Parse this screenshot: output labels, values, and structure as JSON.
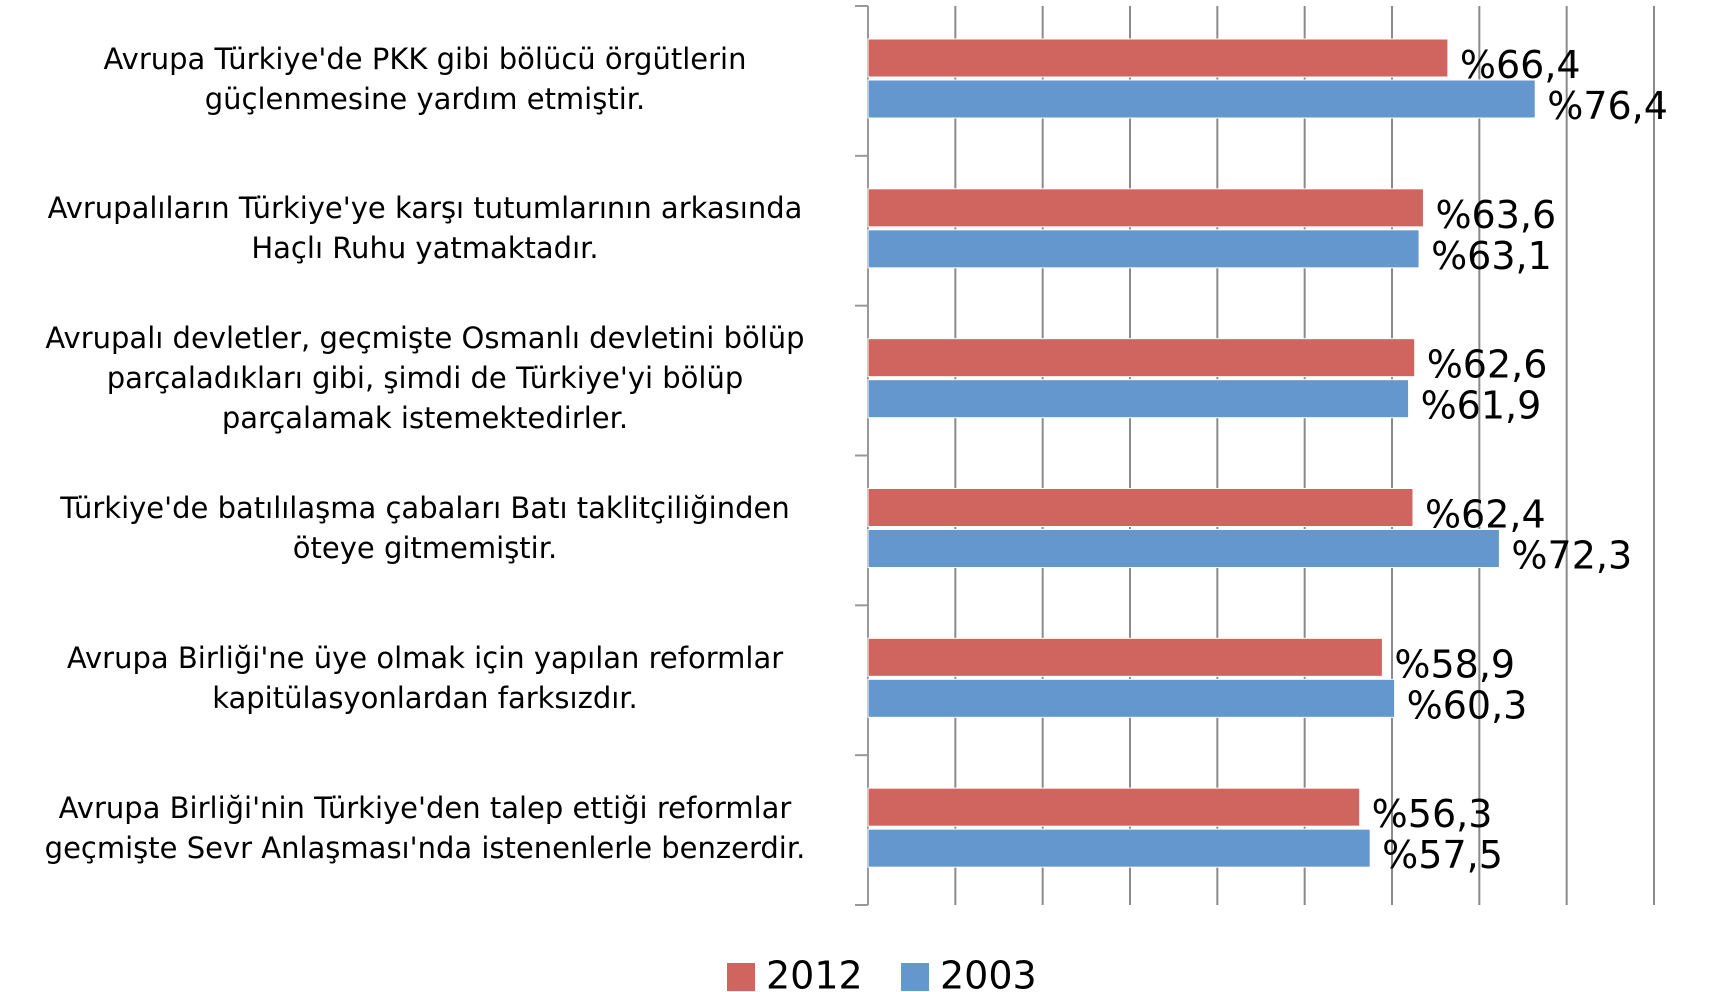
{
  "chart_data": {
    "type": "bar",
    "orientation": "horizontal",
    "categories": [
      "Avrupa Türkiye'de PKK gibi bölücü örgütlerin\ngüçlenmesine yardım etmiştir.",
      "Avrupalıların Türkiye'ye karşı tutumlarının arkasında\nHaçlı Ruhu yatmaktadır.",
      "Avrupalı devletler, geçmişte Osmanlı devletini bölüp\nparçaladıkları gibi, şimdi de Türkiye'yi bölüp\nparçalamak istemektedirler.",
      "Türkiye'de batılılaşma çabaları Batı taklitçiliğinden\nöteye gitmemiştir.",
      "Avrupa Birliği'ne üye olmak için yapılan reformlar\nkapitülasyonlardan farksızdır.",
      "Avrupa Birliği'nin Türkiye'den talep ettiği reformlar\ngeçmişte Sevr Anlaşması'nda istenenlerle benzerdir."
    ],
    "series": [
      {
        "name": "2012",
        "color": "#d0655f",
        "values": [
          66.4,
          63.6,
          62.6,
          62.4,
          58.9,
          56.3
        ],
        "value_labels": [
          "%66,4",
          "%63,6",
          "%62,6",
          "%62,4",
          "%58,9",
          "%56,3"
        ]
      },
      {
        "name": "2003",
        "color": "#6497cd",
        "values": [
          76.4,
          63.1,
          61.9,
          72.3,
          60.3,
          57.5
        ],
        "value_labels": [
          "%76,4",
          "%63,1",
          "%61,9",
          "%72,3",
          "%60,3",
          "%57,5"
        ]
      }
    ],
    "xlim": [
      0,
      90
    ],
    "xticks": [
      0,
      10,
      20,
      30,
      40,
      50,
      60,
      70,
      80,
      90
    ],
    "grid": true,
    "legend": "bottom"
  }
}
